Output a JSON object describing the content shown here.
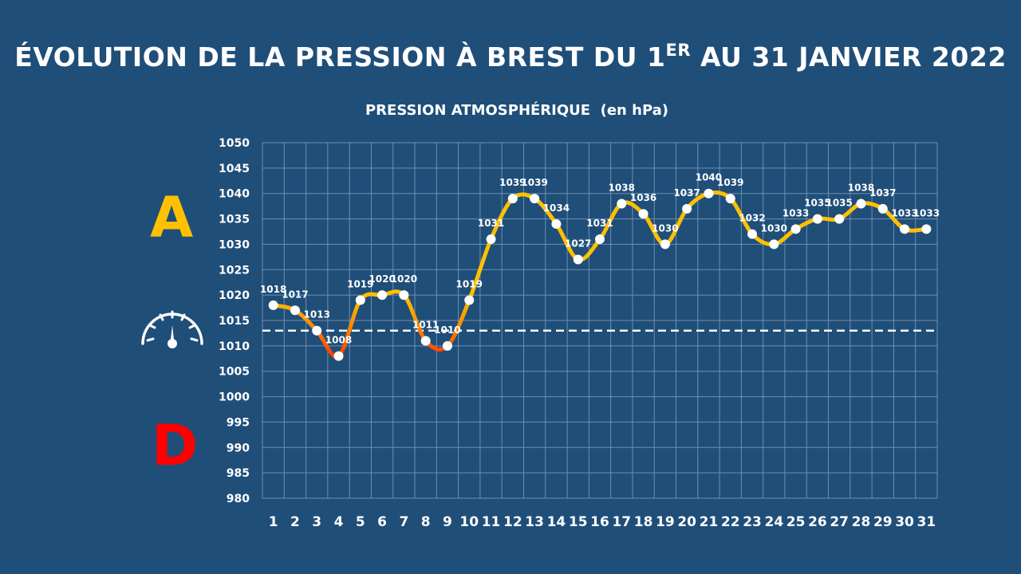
{
  "title": {
    "main": "ÉVOLUTION DE LA PRESSION À BREST DU 1",
    "sup": "ER",
    "rest": " AU 31 JANVIER 2022"
  },
  "subtitle": "PRESSION ATMOSPHÉRIQUE  (en hPa)",
  "markers": {
    "high": {
      "label": "A",
      "color": "#ffc000"
    },
    "low": {
      "label": "D",
      "color": "#ff0000"
    },
    "gauge_icon": "pressure-gauge-icon"
  },
  "colors": {
    "background": "#1f4e79",
    "line_normal": "#ffc000",
    "line_low": "#ff2000",
    "line_mid": "#ff8000",
    "points": "#ffffff",
    "grid": "#6f8fb0",
    "reference_line": "#ffffff"
  },
  "chart_data": {
    "type": "line",
    "x": [
      1,
      2,
      3,
      4,
      5,
      6,
      7,
      8,
      9,
      10,
      11,
      12,
      13,
      14,
      15,
      16,
      17,
      18,
      19,
      20,
      21,
      22,
      23,
      24,
      25,
      26,
      27,
      28,
      29,
      30,
      31
    ],
    "series": [
      {
        "values": [
          1018,
          1017,
          1013,
          1008,
          1019,
          1020,
          1020,
          1011,
          1010,
          1019,
          1031,
          1039,
          1039,
          1034,
          1027,
          1031,
          1038,
          1036,
          1030,
          1037,
          1040,
          1039,
          1032,
          1030,
          1033,
          1035,
          1035,
          1038,
          1037,
          1033,
          1033
        ]
      }
    ],
    "ylim": [
      980,
      1050
    ],
    "yticks": [
      980,
      985,
      990,
      995,
      1000,
      1005,
      1010,
      1015,
      1020,
      1025,
      1030,
      1035,
      1040,
      1045,
      1050
    ],
    "reference_line": 1013,
    "data_labels": true,
    "grid": true,
    "legend": "none"
  }
}
